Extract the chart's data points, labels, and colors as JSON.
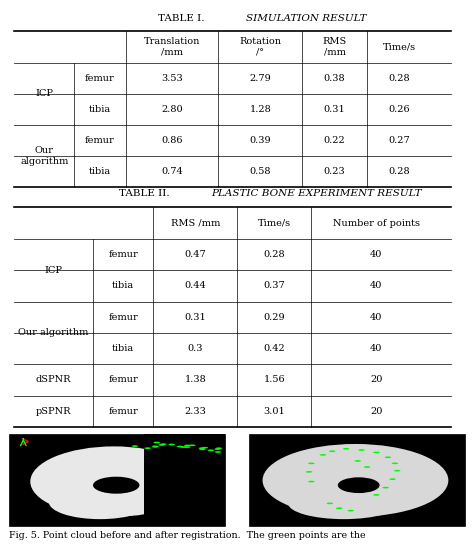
{
  "table1_title": "TABLE I.",
  "table1_subtitle": "SIMULATION RESULT",
  "table1_col_headers": [
    "",
    "",
    "Translation\n/mm",
    "Rotation\n/°",
    "RMS\n/mm",
    "Time/s"
  ],
  "table1_rows": [
    [
      "ICP",
      "femur",
      "3.53",
      "2.79",
      "0.38",
      "0.28"
    ],
    [
      "",
      "tibia",
      "2.80",
      "1.28",
      "0.31",
      "0.26"
    ],
    [
      "Our\nalgorithm",
      "femur",
      "0.86",
      "0.39",
      "0.22",
      "0.27"
    ],
    [
      "",
      "tibia",
      "0.74",
      "0.58",
      "0.23",
      "0.28"
    ]
  ],
  "table2_title": "TABLE II.",
  "table2_subtitle": "PLASTIC BONE EXPERIMENT RESULT",
  "table2_col_headers": [
    "",
    "",
    "RMS /mm",
    "Time/s",
    "Number of points"
  ],
  "table2_rows": [
    [
      "ICP",
      "femur",
      "0.47",
      "0.28",
      "40"
    ],
    [
      "",
      "tibia",
      "0.44",
      "0.37",
      "40"
    ],
    [
      "Our algorithm",
      "femur",
      "0.31",
      "0.29",
      "40"
    ],
    [
      "",
      "tibia",
      "0.3",
      "0.42",
      "40"
    ],
    [
      "dSPNR",
      "femur",
      "1.38",
      "1.56",
      "20"
    ],
    [
      "pSPNR",
      "femur",
      "2.33",
      "3.01",
      "20"
    ]
  ],
  "fig_caption": "Fig. 5. Point cloud before and after registration.  The green points are the",
  "bg_color": "#ffffff"
}
